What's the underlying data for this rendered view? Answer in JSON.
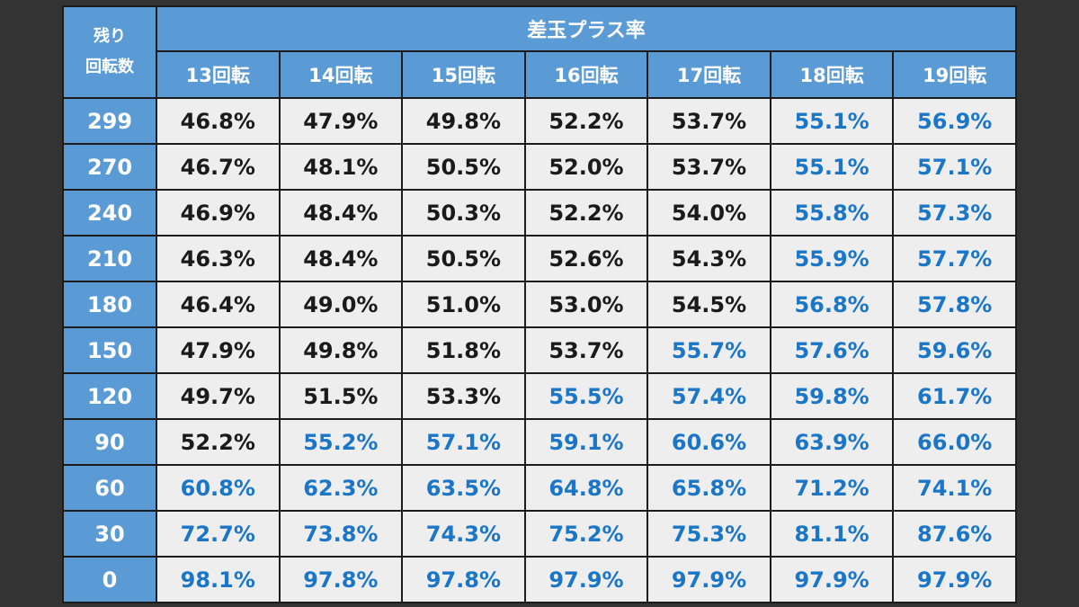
{
  "table": {
    "corner_line1": "残り",
    "corner_line2": "回転数",
    "group_header": "差玉プラス率",
    "columns": [
      "13回転",
      "14回転",
      "15回転",
      "16回転",
      "17回転",
      "18回転",
      "19回転"
    ],
    "colors": {
      "header_bg": "#5b9bd5",
      "cell_bg": "#eeeeee",
      "text_black": "#1a1a1a",
      "text_blue": "#1b76c7",
      "border": "#1c1c1c",
      "page_bg": "#333333"
    },
    "rows": [
      {
        "label": "299",
        "values": [
          "46.8%",
          "47.9%",
          "49.8%",
          "52.2%",
          "53.7%",
          "55.1%",
          "56.9%"
        ],
        "blue_from": 5
      },
      {
        "label": "270",
        "values": [
          "46.7%",
          "48.1%",
          "50.5%",
          "52.0%",
          "53.7%",
          "55.1%",
          "57.1%"
        ],
        "blue_from": 5
      },
      {
        "label": "240",
        "values": [
          "46.9%",
          "48.4%",
          "50.3%",
          "52.2%",
          "54.0%",
          "55.8%",
          "57.3%"
        ],
        "blue_from": 5
      },
      {
        "label": "210",
        "values": [
          "46.3%",
          "48.4%",
          "50.5%",
          "52.6%",
          "54.3%",
          "55.9%",
          "57.7%"
        ],
        "blue_from": 5
      },
      {
        "label": "180",
        "values": [
          "46.4%",
          "49.0%",
          "51.0%",
          "53.0%",
          "54.5%",
          "56.8%",
          "57.8%"
        ],
        "blue_from": 5
      },
      {
        "label": "150",
        "values": [
          "47.9%",
          "49.8%",
          "51.8%",
          "53.7%",
          "55.7%",
          "57.6%",
          "59.6%"
        ],
        "blue_from": 4
      },
      {
        "label": "120",
        "values": [
          "49.7%",
          "51.5%",
          "53.3%",
          "55.5%",
          "57.4%",
          "59.8%",
          "61.7%"
        ],
        "blue_from": 3
      },
      {
        "label": "90",
        "values": [
          "52.2%",
          "55.2%",
          "57.1%",
          "59.1%",
          "60.6%",
          "63.9%",
          "66.0%"
        ],
        "blue_from": 1
      },
      {
        "label": "60",
        "values": [
          "60.8%",
          "62.3%",
          "63.5%",
          "64.8%",
          "65.8%",
          "71.2%",
          "74.1%"
        ],
        "blue_from": 0
      },
      {
        "label": "30",
        "values": [
          "72.7%",
          "73.8%",
          "74.3%",
          "75.2%",
          "75.3%",
          "81.1%",
          "87.6%"
        ],
        "blue_from": 0
      },
      {
        "label": "0",
        "values": [
          "98.1%",
          "97.8%",
          "97.8%",
          "97.9%",
          "97.9%",
          "97.9%",
          "97.9%"
        ],
        "blue_from": 0
      }
    ]
  }
}
